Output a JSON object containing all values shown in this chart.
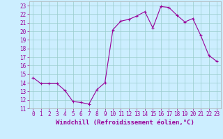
{
  "x": [
    0,
    1,
    2,
    3,
    4,
    5,
    6,
    7,
    8,
    9,
    10,
    11,
    12,
    13,
    14,
    15,
    16,
    17,
    18,
    19,
    20,
    21,
    22,
    23
  ],
  "y": [
    14.6,
    13.9,
    13.9,
    13.9,
    13.1,
    11.8,
    11.7,
    11.5,
    13.2,
    14.0,
    20.2,
    21.2,
    21.4,
    21.8,
    22.3,
    20.4,
    22.9,
    22.8,
    21.9,
    21.1,
    21.5,
    19.5,
    17.2,
    16.5
  ],
  "line_color": "#990099",
  "marker": "+",
  "marker_size": 3,
  "bg_color": "#cceeff",
  "grid_color": "#99cccc",
  "xlabel": "Windchill (Refroidissement éolien,°C)",
  "ylim": [
    11,
    23.5
  ],
  "xlim": [
    -0.5,
    23.5
  ],
  "yticks": [
    11,
    12,
    13,
    14,
    15,
    16,
    17,
    18,
    19,
    20,
    21,
    22,
    23
  ],
  "xticks": [
    0,
    1,
    2,
    3,
    4,
    5,
    6,
    7,
    8,
    9,
    10,
    11,
    12,
    13,
    14,
    15,
    16,
    17,
    18,
    19,
    20,
    21,
    22,
    23
  ],
  "tick_fontsize": 5.5,
  "label_fontsize": 6.5,
  "label_color": "#990099"
}
